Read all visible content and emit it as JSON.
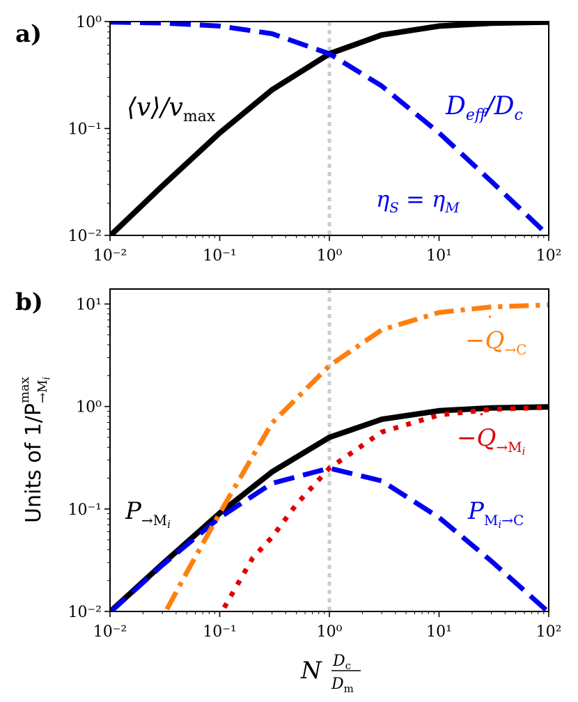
{
  "chart_data": [
    {
      "panel_label": "a)",
      "type": "line",
      "xscale": "log",
      "yscale": "log",
      "xlim": [
        0.01,
        100
      ],
      "ylim": [
        0.01,
        1
      ],
      "x_ticks": [
        0.01,
        0.1,
        1,
        10,
        100
      ],
      "y_ticks": [
        0.01,
        0.1,
        1
      ],
      "reference_line": {
        "x": 1,
        "style": "dotted",
        "color": "#cccccc"
      },
      "series": [
        {
          "name": "<v>/v_max",
          "color": "#000000",
          "style": "solid",
          "x": [
            0.01,
            0.03,
            0.1,
            0.3,
            1,
            3,
            10,
            30,
            100
          ],
          "values": [
            0.0099,
            0.029,
            0.091,
            0.23,
            0.5,
            0.75,
            0.909,
            0.968,
            0.99
          ]
        },
        {
          "name": "D_eff/D_c",
          "color": "#0000ee",
          "style": "dashed",
          "x": [
            0.01,
            0.03,
            0.1,
            0.3,
            1,
            3,
            10,
            30,
            100
          ],
          "values": [
            0.99,
            0.971,
            0.909,
            0.77,
            0.5,
            0.25,
            0.091,
            0.032,
            0.0099
          ]
        }
      ],
      "annotations": {
        "black_curve": {
          "base": "⟨v⟩/v",
          "sub": "max"
        },
        "blue_curve": {
          "base": "D",
          "sub": "eff",
          "mid": "/D",
          "sub2": "c"
        },
        "condition": {
          "lhs": "η",
          "lhs_sub": "S",
          "eq": " = η",
          "rhs_sub": "M"
        }
      }
    },
    {
      "panel_label": "b)",
      "type": "line",
      "xscale": "log",
      "yscale": "log",
      "xlim": [
        0.01,
        100
      ],
      "ylim": [
        0.01,
        14
      ],
      "x_ticks": [
        0.01,
        0.1,
        1,
        10,
        100
      ],
      "y_ticks": [
        0.01,
        0.1,
        1,
        10
      ],
      "reference_line": {
        "x": 1,
        "style": "dotted",
        "color": "#cccccc"
      },
      "ylabel": {
        "prefix": "Units of 1/P",
        "sub": "→M",
        "sub_i": "i",
        "sup": "max"
      },
      "xlabel": {
        "base": "N",
        "num_base": "D",
        "num_sub": "c",
        "den_base": "D",
        "den_sub": "m"
      },
      "series": [
        {
          "name": "P_->Mi",
          "color": "#000000",
          "style": "solid",
          "x": [
            0.01,
            0.03,
            0.1,
            0.3,
            1,
            3,
            10,
            30,
            100
          ],
          "values": [
            0.0099,
            0.029,
            0.091,
            0.23,
            0.5,
            0.75,
            0.909,
            0.968,
            0.99
          ]
        },
        {
          "name": "P_Mi->C",
          "color": "#0000ee",
          "style": "dashed",
          "x": [
            0.01,
            0.03,
            0.1,
            0.3,
            1,
            3,
            10,
            30,
            100
          ],
          "values": [
            0.0098,
            0.0283,
            0.0826,
            0.178,
            0.25,
            0.188,
            0.0826,
            0.031,
            0.0098
          ]
        },
        {
          "name": "-Q_->C",
          "color": "#ff7f0e",
          "style": "dashdot",
          "x": [
            0.033,
            0.05,
            0.1,
            0.3,
            1,
            3,
            10,
            30,
            100
          ],
          "values": [
            0.0105,
            0.024,
            0.0909,
            0.69,
            2.5,
            5.6,
            8.26,
            9.37,
            9.8
          ]
        },
        {
          "name": "-Q_->Mi",
          "color": "#dd0000",
          "style": "dotted",
          "x": [
            0.11,
            0.2,
            0.3,
            0.5,
            1,
            3,
            10,
            30,
            100
          ],
          "values": [
            0.0109,
            0.0333,
            0.053,
            0.111,
            0.25,
            0.563,
            0.826,
            0.937,
            0.98
          ]
        }
      ],
      "annotations": {
        "orange_curve": {
          "prefix": "−",
          "base": "Q",
          "dot": "˙",
          "sub": "→C"
        },
        "red_curve": {
          "prefix": "−",
          "base": "Q",
          "dot": "˙",
          "sub": "→M",
          "sub_i": "i"
        },
        "black_curve": {
          "base": "P",
          "sub": "→M",
          "sub_i": "i"
        },
        "blue_curve": {
          "base": "P",
          "sub": "M",
          "sub_i": "i",
          "sub_rest": "→C"
        }
      }
    }
  ]
}
